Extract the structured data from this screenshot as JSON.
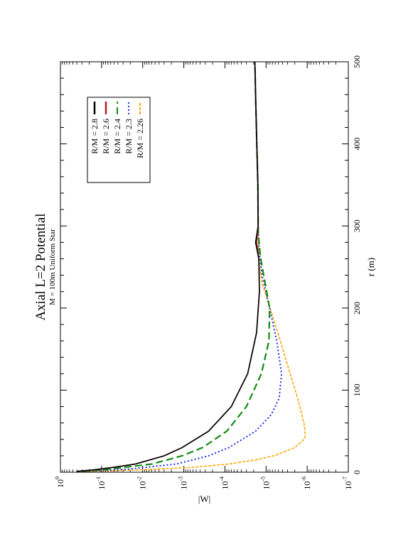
{
  "chart_data": {
    "type": "line",
    "title": "Axial L=2 Potential",
    "subtitle": "M = 100m Uniform Star",
    "xlabel": "r (m)",
    "ylabel": "|W|",
    "xlim": [
      0,
      500
    ],
    "ylim_log10": [
      -7,
      0
    ],
    "y_scale": "log",
    "x_ticks": [
      "0",
      "100",
      "200",
      "300",
      "400",
      "500"
    ],
    "y_tick_base": "10",
    "y_tick_exponents": [
      "0",
      "-1",
      "-2",
      "-3",
      "-4",
      "-5",
      "-6",
      "-7"
    ],
    "legend_position": "top-left",
    "series": [
      {
        "name": "R/M = 2.8",
        "color": "#000000",
        "style": "solid",
        "points": [
          [
            1,
            0.4
          ],
          [
            3,
            0.15
          ],
          [
            6,
            0.05
          ],
          [
            10,
            0.015
          ],
          [
            20,
            0.003
          ],
          [
            30,
            0.0011
          ],
          [
            50,
            0.00025
          ],
          [
            80,
            7e-05
          ],
          [
            120,
            2.8e-05
          ],
          [
            170,
            1.7e-05
          ],
          [
            220,
            1.45e-05
          ],
          [
            260,
            1.5e-05
          ],
          [
            280,
            1.8e-05
          ],
          [
            300,
            1.56e-05
          ],
          [
            350,
            1.58e-05
          ],
          [
            400,
            1.68e-05
          ],
          [
            450,
            1.78e-05
          ],
          [
            500,
            1.87e-05
          ]
        ]
      },
      {
        "name": "R/M = 2.6",
        "color": "#b22222",
        "style": "solid",
        "points": [
          [
            1,
            0.4
          ],
          [
            3,
            0.15
          ],
          [
            6,
            0.05
          ],
          [
            10,
            0.015
          ],
          [
            20,
            0.003
          ],
          [
            30,
            0.0011
          ],
          [
            50,
            0.00025
          ],
          [
            80,
            7e-05
          ],
          [
            120,
            2.8e-05
          ],
          [
            170,
            1.7e-05
          ],
          [
            220,
            1.45e-05
          ],
          [
            260,
            1.5e-05
          ],
          [
            280,
            1.7e-05
          ],
          [
            300,
            1.56e-05
          ],
          [
            350,
            1.58e-05
          ],
          [
            400,
            1.68e-05
          ],
          [
            450,
            1.78e-05
          ],
          [
            500,
            1.87e-05
          ]
        ]
      },
      {
        "name": "R/M = 2.4",
        "color": "#138a13",
        "style": "dashed",
        "points": [
          [
            1,
            0.3
          ],
          [
            4,
            0.06
          ],
          [
            10,
            0.006
          ],
          [
            20,
            0.0011
          ],
          [
            30,
            0.00035
          ],
          [
            50,
            9e-05
          ],
          [
            80,
            3e-05
          ],
          [
            120,
            1.3e-05
          ],
          [
            160,
            8.5e-06
          ],
          [
            200,
            8.2e-06
          ],
          [
            230,
            1.05e-05
          ],
          [
            260,
            1.35e-05
          ],
          [
            290,
            1.55e-05
          ],
          [
            350,
            1.58e-05
          ],
          [
            400,
            1.68e-05
          ],
          [
            450,
            1.78e-05
          ],
          [
            500,
            1.87e-05
          ]
        ]
      },
      {
        "name": "R/M = 2.3",
        "color": "#1f2ee0",
        "style": "dotted",
        "points": [
          [
            1,
            0.25
          ],
          [
            4,
            0.02
          ],
          [
            10,
            0.0015
          ],
          [
            20,
            0.00025
          ],
          [
            30,
            8e-05
          ],
          [
            50,
            1.8e-05
          ],
          [
            70,
            7.5e-06
          ],
          [
            90,
            4.8e-06
          ],
          [
            120,
            4.2e-06
          ],
          [
            160,
            5.5e-06
          ],
          [
            200,
            8.2e-06
          ],
          [
            240,
            1.25e-05
          ],
          [
            270,
            1.48e-05
          ],
          [
            300,
            1.56e-05
          ],
          [
            350,
            1.58e-05
          ],
          [
            400,
            1.68e-05
          ],
          [
            450,
            1.78e-05
          ],
          [
            500,
            1.87e-05
          ]
        ]
      },
      {
        "name": "R/M = 2.26",
        "color": "#ffa500",
        "style": "dashed-fine",
        "points": [
          [
            1,
            0.2
          ],
          [
            3,
            0.01
          ],
          [
            6,
            0.0006
          ],
          [
            10,
            8e-05
          ],
          [
            15,
            1.8e-05
          ],
          [
            20,
            6.5e-06
          ],
          [
            30,
            2e-06
          ],
          [
            40,
            1.2e-06
          ],
          [
            45,
            1.1e-06
          ],
          [
            60,
            1.2e-06
          ],
          [
            90,
            1.7e-06
          ],
          [
            120,
            2.6e-06
          ],
          [
            160,
            4.5e-06
          ],
          [
            200,
            8e-06
          ],
          [
            230,
            1.25e-05
          ],
          [
            260,
            1.52e-05
          ],
          [
            300,
            1.56e-05
          ],
          [
            350,
            1.58e-05
          ],
          [
            400,
            1.68e-05
          ],
          [
            450,
            1.78e-05
          ],
          [
            500,
            1.87e-05
          ]
        ]
      }
    ]
  }
}
